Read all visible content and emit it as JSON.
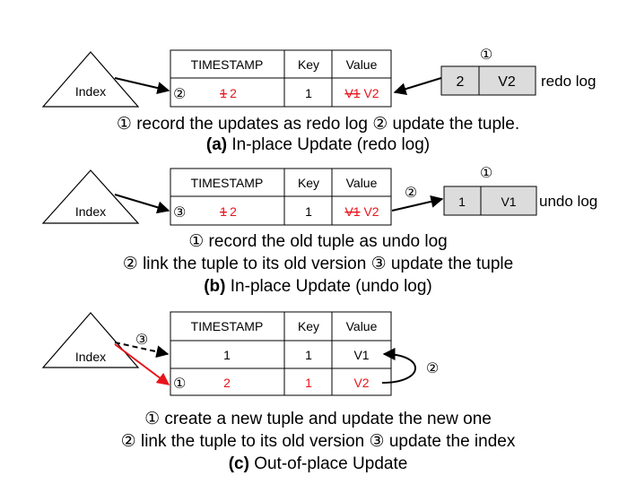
{
  "colors": {
    "accent_red": "#e8141c",
    "line": "#000000",
    "log_fill": "#dcdcdc"
  },
  "common": {
    "index_label": "Index",
    "col_timestamp": "TIMESTAMP",
    "col_key": "Key",
    "col_value": "Value"
  },
  "panel_a": {
    "step_marker": "②",
    "old_timestamp": "1",
    "new_timestamp": "2",
    "key": "1",
    "old_value": "V1",
    "new_value": "V2",
    "log_step": "①",
    "log_ts": "2",
    "log_value": "V2",
    "log_label": "redo log",
    "desc_step1": "①",
    "desc_text1": " record the updates as redo log ",
    "desc_step2": "②",
    "desc_text2": " update the tuple.",
    "caption_tag": "(a)",
    "caption_title": " In-place Update (redo log)"
  },
  "panel_b": {
    "step_marker": "③",
    "old_timestamp": "1",
    "new_timestamp": "2",
    "key": "1",
    "old_value": "V1",
    "new_value": "V2",
    "link_step": "②",
    "log_step": "①",
    "log_ts": "1",
    "log_value": "V1",
    "log_label": "undo log",
    "desc1_step": "①",
    "desc1_text": " record the old tuple as undo log",
    "desc2_step1": "②",
    "desc2_text1": " link the tuple to its old version ",
    "desc2_step2": "③",
    "desc2_text2": " update the tuple",
    "caption_tag": "(b)",
    "caption_title": " In-place Update (undo log)"
  },
  "panel_c": {
    "index_step": "③",
    "row1_timestamp": "1",
    "row1_key": "1",
    "row1_value": "V1",
    "row2_step": "①",
    "row2_timestamp": "2",
    "row2_key": "1",
    "row2_value": "V2",
    "link_step": "②",
    "desc1_step": "①",
    "desc1_text": " create a new tuple and update the new one",
    "desc2_step1": "②",
    "desc2_text1": " link the tuple to its old version ",
    "desc2_step2": "③",
    "desc2_text2": " update the index",
    "caption_tag": "(c)",
    "caption_title": " Out-of-place Update"
  }
}
